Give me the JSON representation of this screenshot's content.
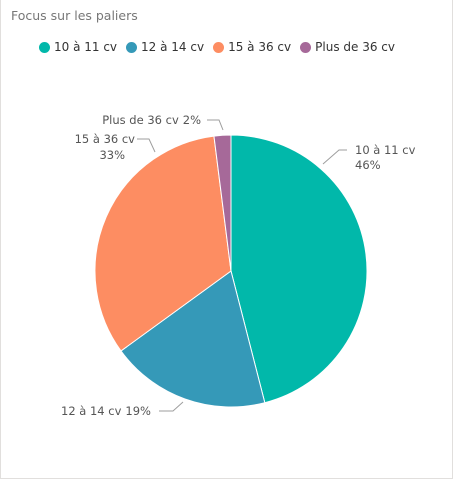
{
  "title": "Focus sur les paliers",
  "chart_data": {
    "type": "pie",
    "title": "Focus sur les paliers",
    "legend_position": "top-left",
    "slices": [
      {
        "label": "10 à 11 cv",
        "value": 46,
        "percent_label": "46%",
        "color": "#01b8aa"
      },
      {
        "label": "12 à 14 cv",
        "value": 19,
        "percent_label": "19%",
        "color": "#3599b8"
      },
      {
        "label": "15 à 36 cv",
        "value": 33,
        "percent_label": "33%",
        "color": "#fd8d62"
      },
      {
        "label": "Plus de 36 cv",
        "value": 2,
        "percent_label": "2%",
        "color": "#a66999"
      }
    ]
  }
}
